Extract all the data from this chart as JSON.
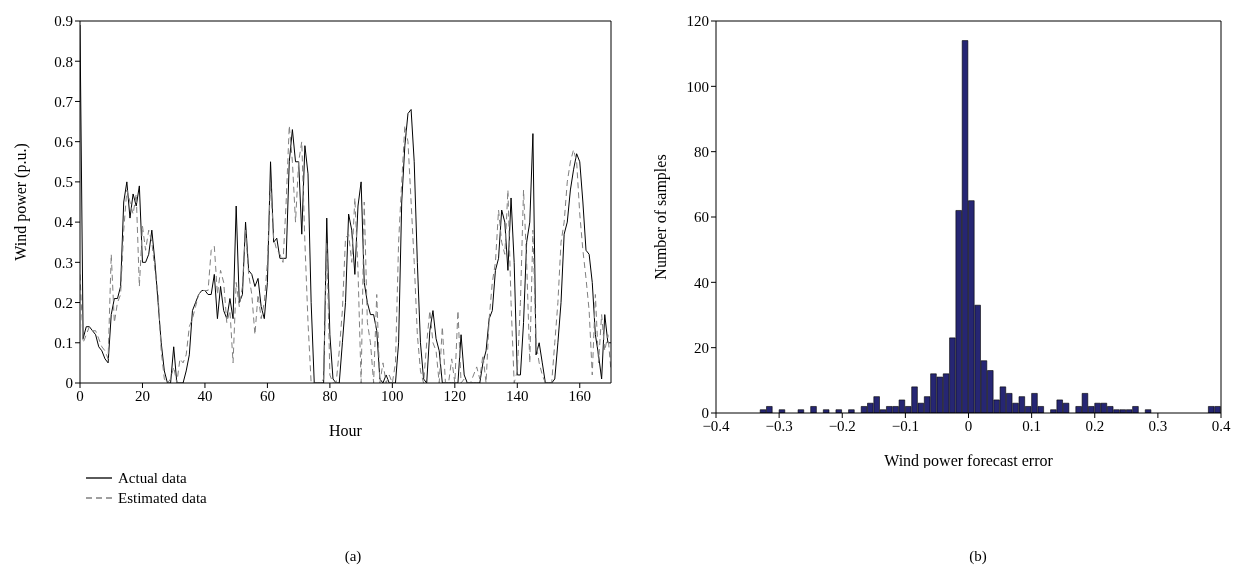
{
  "chart_data": [
    {
      "type": "line",
      "xlabel": "Hour",
      "ylabel": "Wind power (p.u.)",
      "xlim": [
        0,
        170
      ],
      "xticks": [
        0,
        20,
        40,
        60,
        80,
        100,
        120,
        140,
        160
      ],
      "ylim": [
        0,
        0.9
      ],
      "yticks": [
        0,
        0.1,
        0.2,
        0.3,
        0.4,
        0.5,
        0.6,
        0.7,
        0.8,
        0.9
      ],
      "grid": false,
      "legend": "bottom left",
      "marker": "none",
      "annotations": [
        "(a)"
      ],
      "x": [
        0,
        1,
        2,
        3,
        4,
        5,
        6,
        7,
        8,
        9,
        10,
        11,
        12,
        13,
        14,
        15,
        16,
        17,
        18,
        19,
        20,
        21,
        22,
        23,
        24,
        25,
        26,
        27,
        28,
        29,
        30,
        31,
        32,
        33,
        34,
        35,
        36,
        37,
        38,
        39,
        40,
        41,
        42,
        43,
        44,
        45,
        46,
        47,
        48,
        49,
        50,
        51,
        52,
        53,
        54,
        55,
        56,
        57,
        58,
        59,
        60,
        61,
        62,
        63,
        64,
        65,
        66,
        67,
        68,
        69,
        70,
        71,
        72,
        73,
        74,
        75,
        76,
        77,
        78,
        79,
        80,
        81,
        82,
        83,
        84,
        85,
        86,
        87,
        88,
        89,
        90,
        91,
        92,
        93,
        94,
        95,
        96,
        97,
        98,
        99,
        100,
        101,
        102,
        103,
        104,
        105,
        106,
        107,
        108,
        109,
        110,
        111,
        112,
        113,
        114,
        115,
        116,
        117,
        118,
        119,
        120,
        121,
        122,
        123,
        124,
        125,
        126,
        127,
        128,
        129,
        130,
        131,
        132,
        133,
        134,
        135,
        136,
        137,
        138,
        139,
        140,
        141,
        142,
        143,
        144,
        145,
        146,
        147,
        148,
        149,
        150,
        151,
        152,
        153,
        154,
        155,
        156,
        157,
        158,
        159,
        160,
        161,
        162,
        163,
        164,
        165,
        166,
        167,
        168,
        169,
        170
      ],
      "series": [
        {
          "name": "Actual data",
          "color": "#000000",
          "line_style": "solid",
          "values": [
            0.89,
            0.11,
            0.14,
            0.14,
            0.13,
            0.12,
            0.09,
            0.08,
            0.06,
            0.05,
            0.17,
            0.21,
            0.21,
            0.24,
            0.45,
            0.5,
            0.41,
            0.47,
            0.44,
            0.49,
            0.3,
            0.3,
            0.32,
            0.38,
            0.3,
            0.2,
            0.1,
            0.03,
            0,
            0,
            0.09,
            0,
            0,
            0,
            0.03,
            0.07,
            0.18,
            0.2,
            0.22,
            0.23,
            0.23,
            0.22,
            0.22,
            0.27,
            0.16,
            0.24,
            0.18,
            0.16,
            0.21,
            0.16,
            0.44,
            0.2,
            0.22,
            0.4,
            0.28,
            0.27,
            0.24,
            0.26,
            0.19,
            0.16,
            0.25,
            0.55,
            0.35,
            0.36,
            0.31,
            0.31,
            0.31,
            0.55,
            0.63,
            0.55,
            0.55,
            0.37,
            0.59,
            0.52,
            0.2,
            0,
            0,
            0,
            0,
            0.41,
            0.12,
            0.01,
            0,
            0,
            0.1,
            0.2,
            0.42,
            0.38,
            0.27,
            0.44,
            0.5,
            0.25,
            0.2,
            0.17,
            0.17,
            0.13,
            0.01,
            0,
            0.02,
            0,
            0,
            0,
            0.1,
            0.45,
            0.59,
            0.67,
            0.68,
            0.55,
            0.3,
            0.1,
            0.01,
            0,
            0.13,
            0.18,
            0.11,
            0.08,
            0,
            0,
            0,
            0,
            0,
            0,
            0.12,
            0.02,
            0,
            0,
            0,
            0,
            0,
            0.05,
            0.08,
            0.16,
            0.18,
            0.28,
            0.31,
            0.43,
            0.4,
            0.28,
            0.46,
            0.3,
            0.02,
            0.02,
            0.15,
            0.35,
            0.4,
            0.62,
            0.07,
            0.1,
            0.05,
            0,
            0,
            0,
            0.01,
            0.1,
            0.2,
            0.37,
            0.4,
            0.48,
            0.53,
            0.57,
            0.55,
            0.45,
            0.33,
            0.32,
            0.25,
            0.12,
            0.07,
            0.01,
            0.17,
            0.1,
            0.1
          ]
        },
        {
          "name": "Estimated data",
          "color": "#808080",
          "line_style": "dashed",
          "values": [
            0.27,
            0.1,
            0.12,
            0.14,
            0.13,
            0.13,
            0.11,
            0.09,
            0.08,
            0.06,
            0.32,
            0.15,
            0.2,
            0.22,
            0.38,
            0.48,
            0.45,
            0.42,
            0.47,
            0.24,
            0.39,
            0.33,
            0.38,
            0.35,
            0.28,
            0.22,
            0.08,
            0.01,
            0,
            0.01,
            0.04,
            0,
            0.06,
            0.05,
            0.07,
            0.14,
            0.16,
            0.19,
            0.22,
            0.23,
            0.23,
            0.23,
            0.33,
            0.34,
            0.22,
            0.28,
            0.25,
            0.15,
            0.18,
            0.05,
            0.25,
            0.19,
            0.24,
            0.38,
            0.27,
            0.22,
            0.12,
            0.22,
            0.16,
            0.2,
            0.3,
            0.5,
            0.36,
            0.33,
            0.32,
            0.3,
            0.45,
            0.64,
            0.55,
            0.4,
            0.55,
            0.6,
            0.35,
            0.15,
            0,
            0,
            0,
            0,
            0.01,
            0.35,
            0.02,
            0,
            0,
            0.08,
            0.18,
            0.36,
            0.37,
            0.3,
            0.46,
            0.28,
            0,
            0.45,
            0.15,
            0.1,
            0,
            0.22,
            0,
            0.05,
            0,
            0.02,
            0,
            0.05,
            0.35,
            0.5,
            0.64,
            0.6,
            0.45,
            0.3,
            0.12,
            0.03,
            0,
            0.1,
            0.18,
            0.1,
            0.08,
            0,
            0.14,
            0,
            0,
            0.06,
            0,
            0.18,
            0,
            0.01,
            0,
            0,
            0.02,
            0.04,
            0.01,
            0.07,
            0,
            0.16,
            0.25,
            0.3,
            0.43,
            0.35,
            0.32,
            0.48,
            0.2,
            0,
            0.03,
            0.2,
            0.48,
            0.3,
            0.05,
            0.38,
            0.1,
            0.05,
            0.02,
            0,
            0,
            0,
            0.1,
            0.2,
            0.35,
            0.4,
            0.5,
            0.55,
            0.58,
            0.55,
            0.42,
            0.33,
            0.26,
            0.18,
            0.02,
            0.22,
            0.05,
            0.17,
            0.08,
            0.12,
            0.03
          ]
        }
      ]
    },
    {
      "type": "histogram",
      "xlabel": "Wind power forecast error",
      "ylabel": "Number of samples",
      "color": "#262673",
      "grid": false,
      "annotations": [
        "(b)"
      ],
      "xlim": [
        -0.4,
        0.4
      ],
      "xticks": [
        {
          "value": -0.4,
          "label": "−0.4"
        },
        {
          "value": -0.3,
          "label": "−0.3"
        },
        {
          "value": -0.2,
          "label": "−0.2"
        },
        {
          "value": -0.1,
          "label": "−0.1"
        },
        0,
        0.1,
        0.2,
        0.3,
        0.4
      ],
      "ylim": [
        0,
        120
      ],
      "yticks": [
        0,
        20,
        40,
        60,
        80,
        100,
        120
      ],
      "bins": [
        -0.33,
        -0.32,
        -0.31,
        -0.3,
        -0.29,
        -0.28,
        -0.27,
        -0.26,
        -0.25,
        -0.24,
        -0.23,
        -0.22,
        -0.21,
        -0.2,
        -0.19,
        -0.18,
        -0.17,
        -0.16,
        -0.15,
        -0.14,
        -0.13,
        -0.12,
        -0.11,
        -0.1,
        -0.09,
        -0.08,
        -0.07,
        -0.06,
        -0.05,
        -0.04,
        -0.03,
        -0.02,
        -0.01,
        0,
        0.01,
        0.02,
        0.03,
        0.04,
        0.05,
        0.06,
        0.07,
        0.08,
        0.09,
        0.1,
        0.11,
        0.12,
        0.13,
        0.14,
        0.15,
        0.16,
        0.17,
        0.18,
        0.19,
        0.2,
        0.21,
        0.22,
        0.23,
        0.24,
        0.25,
        0.26,
        0.27,
        0.28,
        0.29,
        0.3,
        0.31,
        0.32,
        0.33,
        0.34,
        0.35,
        0.36,
        0.37,
        0.38,
        0.39,
        0.4
      ],
      "values": [
        1,
        2,
        0,
        1,
        0,
        0,
        1,
        0,
        2,
        0,
        1,
        0,
        1,
        0,
        1,
        0,
        2,
        3,
        5,
        1,
        2,
        2,
        4,
        2,
        8,
        3,
        5,
        12,
        11,
        12,
        23,
        62,
        114,
        65,
        33,
        16,
        13,
        4,
        8,
        6,
        3,
        5,
        2,
        6,
        2,
        0,
        1,
        4,
        3,
        0,
        2,
        6,
        2,
        3,
        3,
        2,
        1,
        1,
        1,
        2,
        0,
        1,
        0,
        0,
        0,
        0,
        0,
        0,
        0,
        0,
        0,
        2,
        2
      ]
    }
  ]
}
